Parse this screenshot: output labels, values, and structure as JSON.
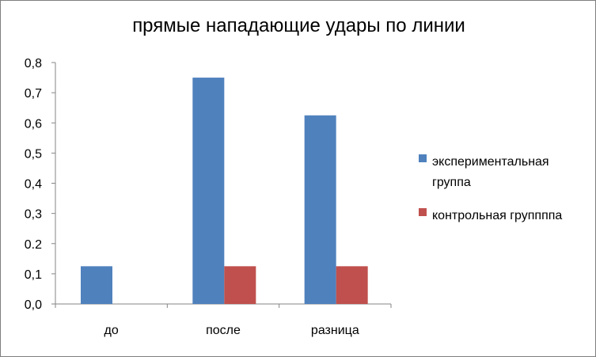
{
  "chart_data": {
    "type": "bar",
    "title": "прямые нападающие удары по линии",
    "categories": [
      "до",
      "после",
      "разница"
    ],
    "series": [
      {
        "name": "экспериментальная группа",
        "name_lines": [
          "экспериментальная",
          "группа"
        ],
        "color": "#4f81bd",
        "values": [
          0.125,
          0.75,
          0.625
        ]
      },
      {
        "name": "контрольная группппа",
        "name_lines": [
          "контрольная группппа"
        ],
        "color": "#c0504d",
        "values": [
          0,
          0.125,
          0.125
        ]
      }
    ],
    "ylim": [
      0,
      0.8
    ],
    "yticks": [
      "0,0",
      "0,1",
      "0.2",
      "0,3",
      "0,4",
      "0,5",
      "0,6",
      "0,7",
      "0,8"
    ],
    "xlabel": "",
    "ylabel": "",
    "grid": false,
    "legend_position": "right"
  }
}
